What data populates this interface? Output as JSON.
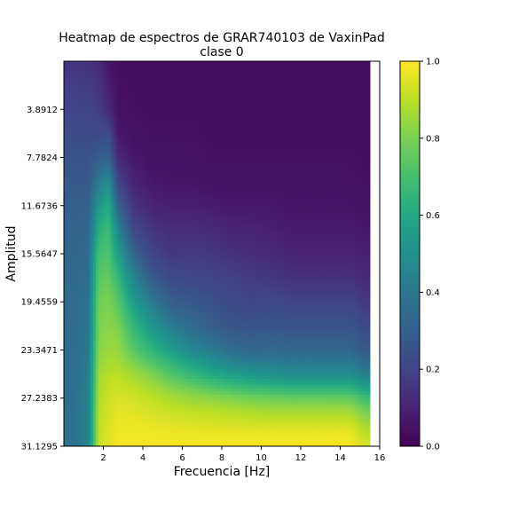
{
  "chart_data": {
    "type": "heatmap",
    "title": "Heatmap de espectros de GRAR740103 de VaxinPad",
    "subtitle": "clase 0",
    "xlabel": "Frecuencia [Hz]",
    "ylabel": "Amplitud",
    "x_range": [
      0,
      16
    ],
    "x_ticks": [
      2,
      4,
      6,
      8,
      10,
      12,
      14,
      16
    ],
    "y_range": [
      0,
      31.1295
    ],
    "y_ticks": [
      3.8912,
      7.7824,
      11.6736,
      15.5647,
      19.4559,
      23.3471,
      27.2383,
      31.1295
    ],
    "y_tick_labels": [
      "3.8912",
      "7.7824",
      "11.6736",
      "15.5647",
      "19.4559",
      "23.3471",
      "27.2383",
      "31.1295"
    ],
    "data_x_max": 15.5,
    "colormap": "viridis",
    "colorbar_range": [
      0,
      1
    ],
    "colorbar_ticks": [
      0.0,
      0.2,
      0.4,
      0.6,
      0.8,
      1.0
    ],
    "colorbar_tick_labels": [
      "0.0",
      "0.2",
      "0.4",
      "0.6",
      "0.8",
      "1.0"
    ],
    "column_frequencies": [
      0.5,
      1.25,
      1.75,
      2.25,
      2.75,
      3.5,
      4.5,
      5.5,
      6.5,
      7.5,
      8.5,
      9.5,
      10.5,
      11.5,
      12.5,
      13.5,
      14.5,
      15.25
    ],
    "row_amplitudes": [
      0,
      1.9,
      3.9,
      5.8,
      7.8,
      9.7,
      11.7,
      13.6,
      15.6,
      17.5,
      19.5,
      21.4,
      23.3,
      24.3,
      25.3,
      26.3,
      27.2,
      28.2,
      29.2,
      30.1,
      31.1
    ],
    "values": [
      [
        0.14,
        0.14,
        0.12,
        0.06,
        0.03,
        0.03,
        0.03,
        0.03,
        0.03,
        0.03,
        0.03,
        0.03,
        0.03,
        0.03,
        0.03,
        0.03,
        0.03,
        0.03
      ],
      [
        0.18,
        0.17,
        0.15,
        0.09,
        0.04,
        0.03,
        0.03,
        0.03,
        0.03,
        0.03,
        0.03,
        0.03,
        0.03,
        0.03,
        0.03,
        0.03,
        0.03,
        0.03
      ],
      [
        0.2,
        0.2,
        0.18,
        0.12,
        0.05,
        0.04,
        0.03,
        0.03,
        0.03,
        0.03,
        0.03,
        0.03,
        0.03,
        0.03,
        0.03,
        0.03,
        0.03,
        0.03
      ],
      [
        0.23,
        0.22,
        0.22,
        0.22,
        0.07,
        0.05,
        0.04,
        0.04,
        0.04,
        0.03,
        0.03,
        0.03,
        0.03,
        0.03,
        0.03,
        0.03,
        0.03,
        0.03
      ],
      [
        0.26,
        0.26,
        0.3,
        0.32,
        0.12,
        0.07,
        0.05,
        0.05,
        0.05,
        0.04,
        0.04,
        0.04,
        0.04,
        0.04,
        0.04,
        0.04,
        0.04,
        0.03
      ],
      [
        0.28,
        0.28,
        0.4,
        0.48,
        0.2,
        0.1,
        0.07,
        0.06,
        0.06,
        0.05,
        0.05,
        0.05,
        0.05,
        0.05,
        0.05,
        0.05,
        0.05,
        0.04
      ],
      [
        0.3,
        0.31,
        0.52,
        0.62,
        0.32,
        0.15,
        0.1,
        0.09,
        0.09,
        0.08,
        0.07,
        0.07,
        0.07,
        0.06,
        0.06,
        0.06,
        0.06,
        0.05
      ],
      [
        0.32,
        0.33,
        0.62,
        0.68,
        0.45,
        0.22,
        0.15,
        0.13,
        0.13,
        0.12,
        0.1,
        0.1,
        0.09,
        0.08,
        0.08,
        0.08,
        0.08,
        0.07
      ],
      [
        0.33,
        0.35,
        0.7,
        0.72,
        0.56,
        0.33,
        0.2,
        0.16,
        0.17,
        0.16,
        0.14,
        0.13,
        0.12,
        0.1,
        0.1,
        0.1,
        0.1,
        0.09
      ],
      [
        0.34,
        0.36,
        0.74,
        0.76,
        0.66,
        0.45,
        0.28,
        0.22,
        0.21,
        0.2,
        0.19,
        0.17,
        0.16,
        0.14,
        0.14,
        0.14,
        0.14,
        0.12
      ],
      [
        0.35,
        0.38,
        0.78,
        0.8,
        0.74,
        0.56,
        0.4,
        0.3,
        0.28,
        0.25,
        0.22,
        0.2,
        0.22,
        0.2,
        0.2,
        0.2,
        0.2,
        0.16
      ],
      [
        0.35,
        0.39,
        0.8,
        0.82,
        0.8,
        0.66,
        0.52,
        0.4,
        0.35,
        0.3,
        0.27,
        0.26,
        0.27,
        0.26,
        0.26,
        0.26,
        0.26,
        0.22
      ],
      [
        0.36,
        0.4,
        0.82,
        0.85,
        0.84,
        0.74,
        0.64,
        0.54,
        0.45,
        0.4,
        0.35,
        0.33,
        0.34,
        0.33,
        0.33,
        0.33,
        0.33,
        0.28
      ],
      [
        0.36,
        0.41,
        0.84,
        0.87,
        0.87,
        0.8,
        0.72,
        0.64,
        0.56,
        0.5,
        0.44,
        0.41,
        0.41,
        0.4,
        0.4,
        0.4,
        0.4,
        0.34
      ],
      [
        0.36,
        0.42,
        0.86,
        0.89,
        0.9,
        0.86,
        0.8,
        0.72,
        0.66,
        0.6,
        0.56,
        0.52,
        0.5,
        0.48,
        0.48,
        0.48,
        0.48,
        0.42
      ],
      [
        0.36,
        0.43,
        0.87,
        0.91,
        0.92,
        0.9,
        0.86,
        0.8,
        0.76,
        0.72,
        0.68,
        0.66,
        0.64,
        0.62,
        0.62,
        0.62,
        0.62,
        0.55
      ],
      [
        0.36,
        0.44,
        0.88,
        0.92,
        0.94,
        0.93,
        0.9,
        0.87,
        0.84,
        0.82,
        0.8,
        0.78,
        0.77,
        0.76,
        0.76,
        0.76,
        0.76,
        0.68
      ],
      [
        0.37,
        0.44,
        0.89,
        0.93,
        0.96,
        0.95,
        0.93,
        0.91,
        0.9,
        0.89,
        0.88,
        0.87,
        0.86,
        0.86,
        0.86,
        0.86,
        0.85,
        0.78
      ],
      [
        0.37,
        0.45,
        0.9,
        0.94,
        0.97,
        0.97,
        0.96,
        0.95,
        0.94,
        0.93,
        0.93,
        0.92,
        0.92,
        0.92,
        0.92,
        0.92,
        0.92,
        0.85
      ],
      [
        0.37,
        0.45,
        0.9,
        0.95,
        0.98,
        0.98,
        0.98,
        0.97,
        0.97,
        0.97,
        0.97,
        0.97,
        0.97,
        0.97,
        0.97,
        0.97,
        0.97,
        0.9
      ],
      [
        0.37,
        0.45,
        0.91,
        0.95,
        0.99,
        0.99,
        0.99,
        0.99,
        0.99,
        0.99,
        0.99,
        0.99,
        0.99,
        0.99,
        0.99,
        0.99,
        0.99,
        0.93
      ]
    ]
  }
}
